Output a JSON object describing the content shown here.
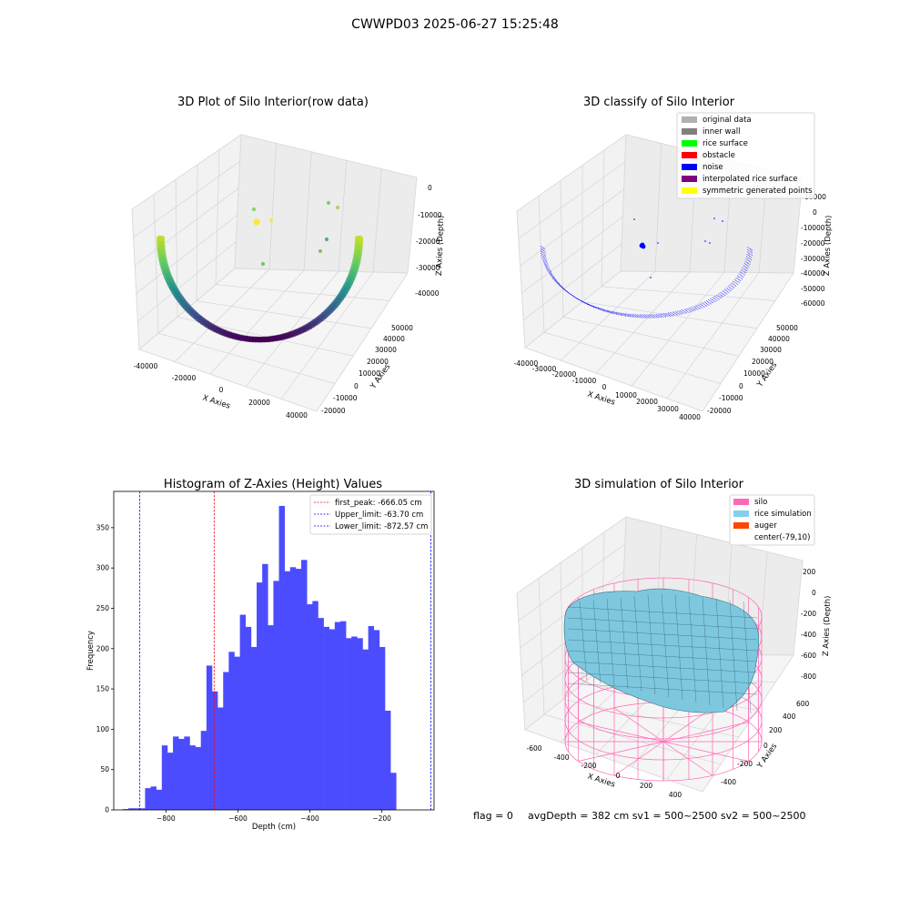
{
  "suptitle": "CWWPD03 2025-06-27 15:25:48",
  "plot1": {
    "title": "3D Plot of Silo Interior(row data)",
    "xlabel": "X Axies",
    "ylabel": "Y Axies",
    "zlabel": "Z Axies (Depth)",
    "xticks": [
      "-40000",
      "-20000",
      "0",
      "20000",
      "40000"
    ],
    "yticks": [
      "-20000",
      "-10000",
      "0",
      "10000",
      "20000",
      "30000",
      "40000",
      "50000"
    ],
    "zticks": [
      "0",
      "-10000",
      "-20000",
      "-30000",
      "-40000"
    ]
  },
  "plot2": {
    "title": "3D classify of Silo Interior",
    "xlabel": "X Axies",
    "ylabel": "Y Axies",
    "zlabel": "Z Axies (Depth)",
    "xticks": [
      "-40000",
      "-30000",
      "-20000",
      "-10000",
      "0",
      "10000",
      "20000",
      "30000",
      "40000"
    ],
    "yticks": [
      "-20000",
      "-10000",
      "0",
      "10000",
      "20000",
      "30000",
      "40000",
      "50000"
    ],
    "zticks": [
      "10000",
      "0",
      "-10000",
      "-20000",
      "-30000",
      "-40000",
      "-50000",
      "-60000"
    ],
    "legend": [
      {
        "label": "original data",
        "color": "#b0b0b0"
      },
      {
        "label": "inner wall",
        "color": "#808080"
      },
      {
        "label": "rice surface",
        "color": "#00ff00"
      },
      {
        "label": "obstacle",
        "color": "#ff0000"
      },
      {
        "label": "noise",
        "color": "#0000ff"
      },
      {
        "label": "interpolated rice surface",
        "color": "#800080"
      },
      {
        "label": "symmetric generated points",
        "color": "#ffff00"
      }
    ]
  },
  "plot4": {
    "title": "3D simulation of Silo Interior",
    "xlabel": "X Axies",
    "ylabel": "Y Axies",
    "zlabel": "Z Axies (Depth)",
    "xticks": [
      "-600",
      "-400",
      "-200",
      "0",
      "200",
      "400"
    ],
    "yticks": [
      "-400",
      "-200",
      "0",
      "200",
      "400",
      "600"
    ],
    "zticks": [
      "200",
      "0",
      "-200",
      "-400",
      "-600",
      "-800"
    ],
    "legend": [
      {
        "label": "silo",
        "color": "#ff69b4"
      },
      {
        "label": "rice simulation",
        "color": "#87ceeb"
      },
      {
        "label": "auger",
        "color": "#ff4500"
      },
      {
        "label": "center(-79,10)",
        "color": "#ffffff"
      }
    ]
  },
  "footer": {
    "flag": "flag = 0",
    "stats": "avgDepth = 382 cm  sv1 = 500~2500  sv2 = 500~2500"
  },
  "chart_data": [
    {
      "type": "scatter",
      "title": "3D Plot of Silo Interior(row data)",
      "xlabel": "X Axies",
      "ylabel": "Y Axies",
      "zlabel": "Z Axies (Depth)",
      "xlim": [
        -45000,
        45000
      ],
      "ylim": [
        -22000,
        58000
      ],
      "zlim": [
        -45000,
        2000
      ],
      "colormap": "viridis"
    },
    {
      "type": "scatter",
      "title": "3D classify of Silo Interior",
      "xlabel": "X Axies",
      "ylabel": "Y Axies",
      "zlabel": "Z Axies (Depth)",
      "xlim": [
        -42000,
        42000
      ],
      "ylim": [
        -22000,
        58000
      ],
      "zlim": [
        -65000,
        12000
      ],
      "legend_position": "top-right"
    },
    {
      "type": "bar",
      "title": "Histogram of Z-Axies (Height) Values",
      "xlabel": "Depth (cm)",
      "ylabel": "Frequency",
      "xlim": [
        -945,
        -55
      ],
      "ylim": [
        0,
        395
      ],
      "xticks": [
        -800,
        -600,
        -400,
        -200
      ],
      "yticks": [
        0,
        50,
        100,
        150,
        200,
        250,
        300,
        350
      ],
      "bin_start": -920,
      "bin_width": 15.5,
      "values": [
        1,
        2,
        2,
        2,
        27,
        29,
        25,
        80,
        71,
        91,
        88,
        91,
        80,
        78,
        98,
        179,
        147,
        127,
        171,
        196,
        190,
        242,
        227,
        202,
        282,
        305,
        229,
        284,
        377,
        296,
        301,
        299,
        310,
        255,
        259,
        238,
        227,
        224,
        233,
        234,
        213,
        215,
        213,
        199,
        228,
        223,
        202,
        123,
        46
      ],
      "bar_color": "#4c4cff",
      "lines": [
        {
          "label": "first_peak: -666.05 cm",
          "value": -666.05,
          "color": "#ff0000"
        },
        {
          "label": "Upper_limit: -63.70 cm",
          "value": -63.7,
          "color": "#0000ff"
        },
        {
          "label": "Lower_limit: -872.57 cm",
          "value": -872.57,
          "color": "#0000ff"
        }
      ],
      "legend_position": "top-right"
    },
    {
      "type": "area",
      "title": "3D simulation of Silo Interior",
      "xlabel": "X Axies",
      "ylabel": "Y Axies",
      "zlabel": "Z Axies (Depth)",
      "xlim": [
        -650,
        450
      ],
      "ylim": [
        -450,
        650
      ],
      "zlim": [
        -900,
        250
      ],
      "center": [
        -79,
        10
      ],
      "legend_position": "top-right"
    }
  ]
}
